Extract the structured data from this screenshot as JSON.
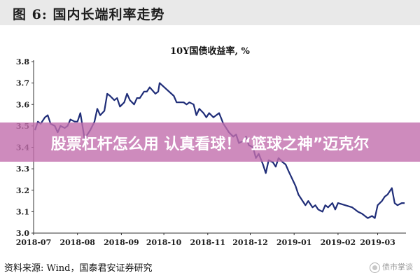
{
  "header": {
    "figure_title": "图 6:  国内长端利率走势"
  },
  "banner": {
    "text": "股票杠杆怎么用 认真看球！“篮球之神”迈克尔"
  },
  "source": {
    "text": "资料来源:  Wind，国泰君安证券研究"
  },
  "watermark": {
    "text": "债市掌谈",
    "icon": "wechat-icon"
  },
  "chart_data": {
    "type": "line",
    "title": "10Y国债收益率, %",
    "xlabel": "",
    "ylabel": "",
    "ylim": [
      3.0,
      3.8
    ],
    "yticks": [
      "3.0",
      "3.1",
      "3.2",
      "3.3",
      "3.4",
      "3.5",
      "3.6",
      "3.7",
      "3.8"
    ],
    "xlim": [
      "2018-07-01",
      "2019-03-21"
    ],
    "xticks": [
      "2018-07",
      "2018-08",
      "2018-09",
      "2018-10",
      "2018-11",
      "2018-12",
      "2019-01",
      "2019-02",
      "2019-03"
    ],
    "grid": false,
    "line_color": "#1f2d78",
    "series": [
      {
        "x": [
          "2018-07-02",
          "2018-07-04",
          "2018-07-06",
          "2018-07-09",
          "2018-07-11",
          "2018-07-13",
          "2018-07-16",
          "2018-07-18",
          "2018-07-20",
          "2018-07-23",
          "2018-07-25",
          "2018-07-27",
          "2018-07-30",
          "2018-08-01",
          "2018-08-03",
          "2018-08-06",
          "2018-08-08",
          "2018-08-10",
          "2018-08-13",
          "2018-08-15",
          "2018-08-17",
          "2018-08-20",
          "2018-08-22",
          "2018-08-24",
          "2018-08-27",
          "2018-08-29",
          "2018-08-31",
          "2018-09-03",
          "2018-09-05",
          "2018-09-07",
          "2018-09-10",
          "2018-09-12",
          "2018-09-14",
          "2018-09-17",
          "2018-09-19",
          "2018-09-21",
          "2018-09-25",
          "2018-09-27",
          "2018-09-28",
          "2018-10-08",
          "2018-10-10",
          "2018-10-12",
          "2018-10-15",
          "2018-10-17",
          "2018-10-19",
          "2018-10-22",
          "2018-10-24",
          "2018-10-26",
          "2018-10-29",
          "2018-10-31",
          "2018-11-02",
          "2018-11-05",
          "2018-11-07",
          "2018-11-09",
          "2018-11-12",
          "2018-11-14",
          "2018-11-16",
          "2018-11-19",
          "2018-11-21",
          "2018-11-23",
          "2018-11-26",
          "2018-11-28",
          "2018-11-30",
          "2018-12-03",
          "2018-12-05",
          "2018-12-07",
          "2018-12-10",
          "2018-12-12",
          "2018-12-14",
          "2018-12-17",
          "2018-12-19",
          "2018-12-21",
          "2018-12-24",
          "2018-12-26",
          "2018-12-28",
          "2019-01-02",
          "2019-01-04",
          "2019-01-07",
          "2019-01-09",
          "2019-01-11",
          "2019-01-14",
          "2019-01-16",
          "2019-01-18",
          "2019-01-21",
          "2019-01-23",
          "2019-01-25",
          "2019-01-28",
          "2019-01-30",
          "2019-02-01",
          "2019-02-11",
          "2019-02-13",
          "2019-02-15",
          "2019-02-18",
          "2019-02-20",
          "2019-02-22",
          "2019-02-25",
          "2019-02-27",
          "2019-03-01",
          "2019-03-04",
          "2019-03-06",
          "2019-03-08",
          "2019-03-11",
          "2019-03-13",
          "2019-03-15",
          "2019-03-18",
          "2019-03-20"
        ],
        "values": [
          3.48,
          3.52,
          3.51,
          3.54,
          3.55,
          3.51,
          3.5,
          3.47,
          3.5,
          3.49,
          3.5,
          3.53,
          3.52,
          3.52,
          3.56,
          3.44,
          3.46,
          3.48,
          3.52,
          3.58,
          3.55,
          3.57,
          3.65,
          3.64,
          3.62,
          3.63,
          3.59,
          3.61,
          3.65,
          3.62,
          3.6,
          3.63,
          3.63,
          3.66,
          3.66,
          3.68,
          3.65,
          3.66,
          3.7,
          3.64,
          3.61,
          3.61,
          3.61,
          3.6,
          3.61,
          3.6,
          3.55,
          3.58,
          3.56,
          3.54,
          3.56,
          3.54,
          3.55,
          3.56,
          3.51,
          3.49,
          3.47,
          3.45,
          3.46,
          3.42,
          3.43,
          3.45,
          3.41,
          3.4,
          3.35,
          3.37,
          3.32,
          3.28,
          3.34,
          3.33,
          3.31,
          3.35,
          3.33,
          3.32,
          3.29,
          3.22,
          3.18,
          3.15,
          3.13,
          3.15,
          3.12,
          3.13,
          3.11,
          3.1,
          3.13,
          3.12,
          3.14,
          3.11,
          3.14,
          3.12,
          3.11,
          3.1,
          3.09,
          3.08,
          3.07,
          3.08,
          3.07,
          3.13,
          3.15,
          3.17,
          3.18,
          3.21,
          3.14,
          3.13,
          3.14,
          3.14
        ]
      }
    ]
  }
}
